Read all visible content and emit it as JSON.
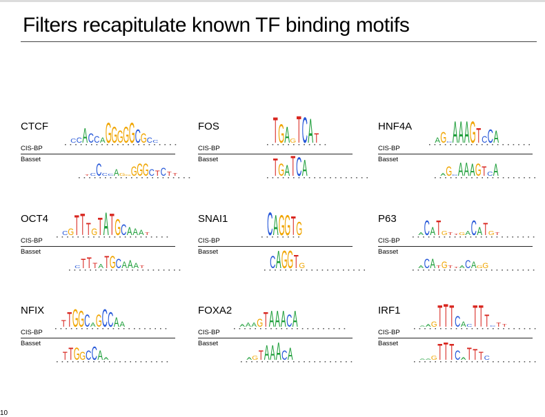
{
  "slide": {
    "title": "Filters recapitulate known TF binding motifs",
    "page_number": "10"
  },
  "labels": {
    "cis": "CIS-BP",
    "basset": "Basset"
  },
  "colors": {
    "A": "#1e9e3a",
    "C": "#2456d8",
    "G": "#f0a500",
    "T": "#d8261f"
  },
  "panels": [
    {
      "name": "CTCF",
      "cis": {
        "start": 72,
        "seq": "CCACCAGGGGGCGCC",
        "heights": [
          0.15,
          0.2,
          0.55,
          0.35,
          0.25,
          0.2,
          0.75,
          0.6,
          0.45,
          0.6,
          0.75,
          0.5,
          0.35,
          0.2,
          0.1
        ],
        "ticks": 22
      },
      "basset": {
        "start": 92,
        "seq": "TCCCCAGGGGGCTCTT",
        "heights": [
          0.05,
          0.1,
          0.45,
          0.1,
          0.08,
          0.25,
          0.1,
          0.05,
          0.35,
          0.45,
          0.45,
          0.25,
          0.2,
          0.3,
          0.15,
          0.1
        ],
        "ticks": 22
      }
    },
    {
      "name": "FOS",
      "cis": {
        "start": 108,
        "seq": "TGAGTCAT",
        "heights": [
          0.95,
          0.7,
          0.6,
          0.15,
          1.0,
          0.95,
          0.9,
          0.35
        ],
        "ticks": 12
      },
      "basset": {
        "start": 108,
        "seq": "TGATCA",
        "heights": [
          0.65,
          0.45,
          0.4,
          0.75,
          0.7,
          0.6
        ],
        "ticks": 20
      }
    },
    {
      "name": "HNF4A",
      "cis": {
        "start": 82,
        "seq": "AGCAAAGTCCA",
        "heights": [
          0.2,
          0.4,
          0.05,
          0.8,
          0.8,
          0.8,
          0.8,
          0.55,
          0.25,
          0.5,
          0.45
        ],
        "ticks": 20
      },
      "basset": {
        "start": 90,
        "seq": "AGCAAAGTCA",
        "heights": [
          0.1,
          0.35,
          0.05,
          0.5,
          0.5,
          0.45,
          0.45,
          0.35,
          0.15,
          0.45
        ],
        "ticks": 20
      }
    },
    {
      "name": "OCT4",
      "cis": {
        "start": 60,
        "seq": "CGTTTGTATGCAAAT",
        "heights": [
          0.15,
          0.25,
          0.75,
          0.8,
          0.45,
          0.25,
          0.65,
          0.85,
          0.8,
          0.6,
          0.4,
          0.3,
          0.25,
          0.2,
          0.1
        ],
        "ticks": 22
      },
      "basset": {
        "start": 78,
        "seq": "CTTTATGCAAAT",
        "heights": [
          0.1,
          0.35,
          0.4,
          0.2,
          0.15,
          0.45,
          0.45,
          0.35,
          0.25,
          0.3,
          0.2,
          0.1
        ],
        "ticks": 22
      }
    },
    {
      "name": "SNAI1",
      "cis": {
        "start": 100,
        "seq": "CAGGTG",
        "heights": [
          0.85,
          0.75,
          0.75,
          0.75,
          0.7,
          0.5
        ],
        "ticks": 8
      },
      "basset": {
        "start": 104,
        "seq": "CAGGTG",
        "heights": [
          0.45,
          0.65,
          0.65,
          0.65,
          0.5,
          0.2
        ],
        "ticks": 20
      }
    },
    {
      "name": "P63",
      "cis": {
        "start": 58,
        "seq": "ACATGTTGACATGT",
        "heights": [
          0.1,
          0.55,
          0.3,
          0.55,
          0.15,
          0.1,
          0.05,
          0.1,
          0.15,
          0.55,
          0.3,
          0.45,
          0.15,
          0.1
        ],
        "ticks": 24
      },
      "basset": {
        "start": 58,
        "seq": "ACATGTTACAGG",
        "heights": [
          0.1,
          0.35,
          0.35,
          0.1,
          0.25,
          0.1,
          0.05,
          0.1,
          0.3,
          0.25,
          0.1,
          0.2
        ],
        "ticks": 24
      }
    },
    {
      "name": "NFIX",
      "cis": {
        "start": 58,
        "seq": "TTGGCAGCCAA",
        "heights": [
          0.25,
          0.55,
          0.65,
          0.6,
          0.45,
          0.15,
          0.45,
          0.65,
          0.55,
          0.35,
          0.2
        ],
        "ticks": 22
      },
      "basset": {
        "start": 60,
        "seq": "TTGGCCAA",
        "heights": [
          0.3,
          0.45,
          0.45,
          0.3,
          0.35,
          0.5,
          0.35,
          0.1
        ],
        "ticks": 22
      }
    },
    {
      "name": "FOXA2",
      "cis": {
        "start": 60,
        "seq": "AAAGTAAACA",
        "heights": [
          0.1,
          0.15,
          0.15,
          0.3,
          0.55,
          0.6,
          0.6,
          0.6,
          0.45,
          0.6
        ],
        "ticks": 22
      },
      "basset": {
        "start": 70,
        "seq": "AGTAAACA",
        "heights": [
          0.1,
          0.15,
          0.35,
          0.55,
          0.55,
          0.65,
          0.35,
          0.45
        ],
        "ticks": 22
      }
    },
    {
      "name": "IRF1",
      "cis": {
        "start": 60,
        "seq": "AAGTTTCACTTTCTT",
        "heights": [
          0.05,
          0.1,
          0.2,
          0.8,
          0.85,
          0.8,
          0.4,
          0.2,
          0.1,
          0.8,
          0.8,
          0.45,
          0.05,
          0.15,
          0.1
        ],
        "ticks": 24
      },
      "basset": {
        "start": 60,
        "seq": "AAGTTTCATTTC",
        "heights": [
          0.05,
          0.05,
          0.15,
          0.6,
          0.65,
          0.6,
          0.35,
          0.1,
          0.45,
          0.4,
          0.3,
          0.15
        ],
        "ticks": 24
      }
    }
  ]
}
